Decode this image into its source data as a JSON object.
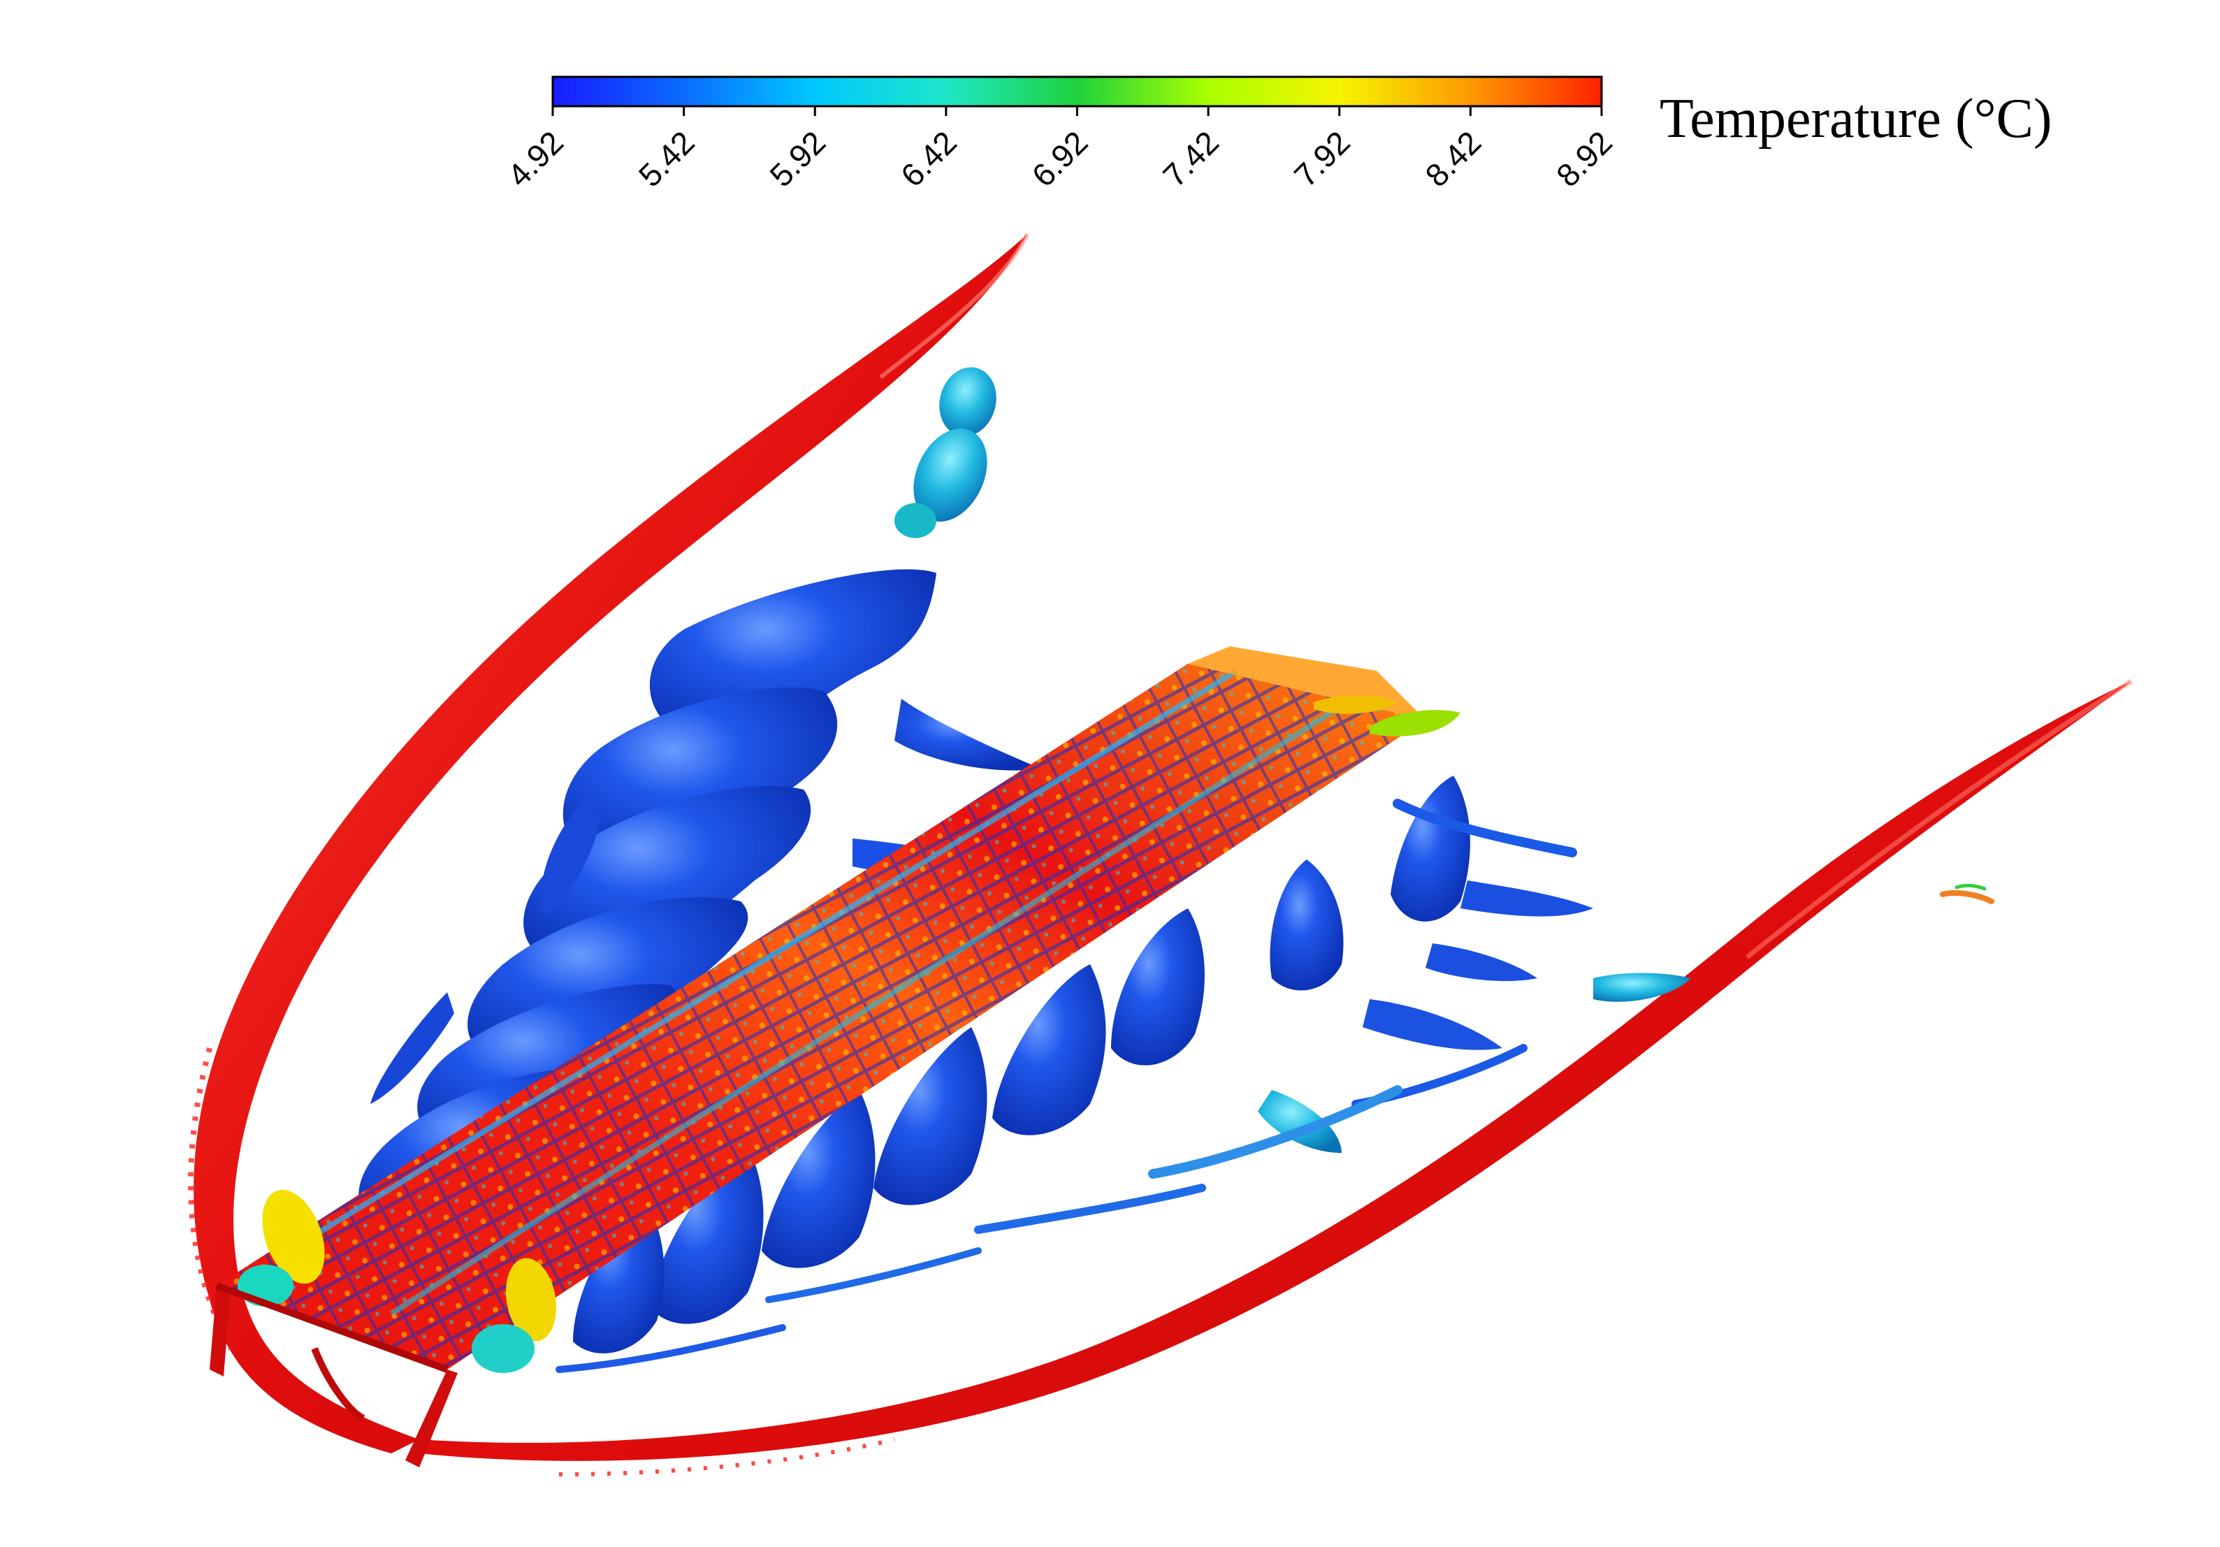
{
  "colorbar": {
    "title": "Temperature (°C)",
    "min": 4.92,
    "max": 8.92,
    "ticks": [
      "4.92",
      "5.42",
      "5.92",
      "6.42",
      "6.92",
      "7.42",
      "7.92",
      "8.42",
      "8.92"
    ],
    "colors": [
      "#1a1aff",
      "#0a6cff",
      "#00c8ff",
      "#1ee6c8",
      "#1fd23c",
      "#aaff00",
      "#f5f500",
      "#ff9900",
      "#ff2200"
    ]
  },
  "palette": {
    "hot": "#ee1111",
    "cold": "#1f4fe0",
    "cold_dark": "#0f2fb8",
    "mid": "#22c8e0"
  }
}
